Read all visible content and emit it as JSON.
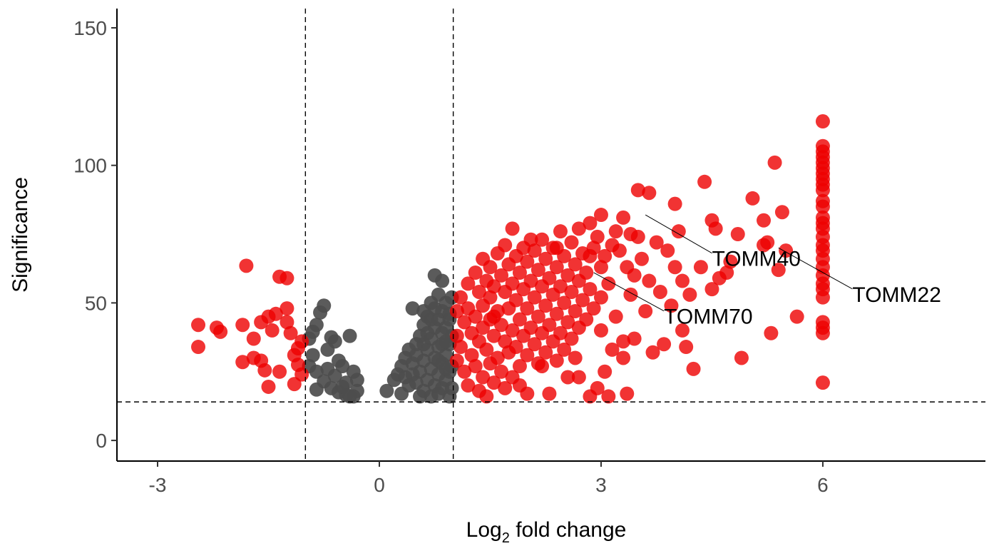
{
  "chart_data": {
    "type": "scatter",
    "title": "",
    "xlabel": "Log2 fold change",
    "xlabel_main": "Log",
    "xlabel_sub": "2",
    "xlabel_rest": " fold change",
    "ylabel": "Significance",
    "xlim": [
      -3.55,
      8.2
    ],
    "ylim": [
      -7.5,
      157
    ],
    "x_ticks": [
      -3,
      0,
      3,
      6
    ],
    "x_tick_labels": [
      "-3",
      "0",
      "3",
      "6"
    ],
    "y_ticks": [
      0,
      50,
      100,
      150
    ],
    "y_tick_labels": [
      "0",
      "50",
      "100",
      "150"
    ],
    "grid": false,
    "legend": "none",
    "thresholds": {
      "fold_change": [
        -1,
        1
      ],
      "significance": 14
    },
    "colors": {
      "significant": "#ee0000",
      "not_significant": "#4d4d4d",
      "threshold_line": "#000000"
    },
    "highlighted_genes": [
      {
        "name": "TOMM40",
        "x": 3.6,
        "y": 82,
        "label_x": 4.5,
        "label_y": 66
      },
      {
        "name": "TOMM70",
        "x": 2.9,
        "y": 61,
        "label_x": 3.85,
        "label_y": 45
      },
      {
        "name": "TOMM22",
        "x": 5.4,
        "y": 70,
        "label_x": 6.4,
        "label_y": 53
      }
    ],
    "not_significant_points": [
      [
        -0.95,
        37
      ],
      [
        -0.9,
        39.5
      ],
      [
        -0.85,
        42
      ],
      [
        -0.8,
        46.5
      ],
      [
        -0.75,
        49
      ],
      [
        -0.7,
        33
      ],
      [
        -0.65,
        37.5
      ],
      [
        -0.6,
        36
      ],
      [
        -0.55,
        29
      ],
      [
        -0.5,
        27
      ],
      [
        -0.4,
        38
      ],
      [
        -0.35,
        25
      ],
      [
        -0.3,
        22
      ],
      [
        -0.95,
        27
      ],
      [
        -0.85,
        25
      ],
      [
        -0.75,
        21.5
      ],
      [
        -0.65,
        19
      ],
      [
        -0.55,
        17.5
      ],
      [
        -0.45,
        16.5
      ],
      [
        -0.35,
        16
      ],
      [
        -0.3,
        18
      ],
      [
        -0.85,
        18.5
      ],
      [
        -0.6,
        23.5
      ],
      [
        -0.45,
        21
      ],
      [
        -0.9,
        31
      ],
      [
        -0.7,
        26
      ],
      [
        -0.5,
        19.5
      ],
      [
        -0.4,
        16
      ],
      [
        0.1,
        18
      ],
      [
        0.2,
        22
      ],
      [
        0.25,
        24
      ],
      [
        0.3,
        27
      ],
      [
        0.35,
        30
      ],
      [
        0.4,
        33
      ],
      [
        0.45,
        48
      ],
      [
        0.5,
        35
      ],
      [
        0.5,
        21
      ],
      [
        0.55,
        38
      ],
      [
        0.55,
        25
      ],
      [
        0.6,
        42
      ],
      [
        0.6,
        29
      ],
      [
        0.6,
        18
      ],
      [
        0.65,
        45
      ],
      [
        0.65,
        33
      ],
      [
        0.65,
        22
      ],
      [
        0.7,
        50
      ],
      [
        0.7,
        37
      ],
      [
        0.7,
        26
      ],
      [
        0.7,
        16
      ],
      [
        0.75,
        60
      ],
      [
        0.75,
        41
      ],
      [
        0.75,
        30
      ],
      [
        0.75,
        20
      ],
      [
        0.8,
        53
      ],
      [
        0.8,
        44
      ],
      [
        0.8,
        34
      ],
      [
        0.8,
        24
      ],
      [
        0.8,
        17
      ],
      [
        0.85,
        58
      ],
      [
        0.85,
        47
      ],
      [
        0.85,
        39
      ],
      [
        0.85,
        28
      ],
      [
        0.85,
        19
      ],
      [
        0.9,
        50
      ],
      [
        0.9,
        41
      ],
      [
        0.9,
        31
      ],
      [
        0.9,
        22
      ],
      [
        0.95,
        44
      ],
      [
        0.95,
        35
      ],
      [
        0.95,
        25
      ],
      [
        0.95,
        16
      ],
      [
        0.98,
        52
      ],
      [
        0.98,
        38
      ],
      [
        0.98,
        27
      ],
      [
        0.98,
        19
      ],
      [
        0.3,
        17
      ],
      [
        0.4,
        20
      ],
      [
        0.45,
        28
      ],
      [
        0.55,
        16
      ],
      [
        0.6,
        35
      ],
      [
        0.7,
        44
      ],
      [
        0.85,
        35
      ],
      [
        0.9,
        26
      ],
      [
        0.35,
        23
      ],
      [
        0.5,
        31
      ],
      [
        0.65,
        39
      ],
      [
        0.8,
        29
      ],
      [
        0.9,
        36
      ],
      [
        0.95,
        46
      ],
      [
        0.75,
        48
      ],
      [
        0.6,
        47
      ],
      [
        0.45,
        24
      ]
    ],
    "significant_points": [
      [
        -2.45,
        42
      ],
      [
        -2.45,
        34
      ],
      [
        -2.2,
        41
      ],
      [
        -2.15,
        39.5
      ],
      [
        -1.8,
        63.5
      ],
      [
        -1.85,
        42
      ],
      [
        -1.85,
        28.5
      ],
      [
        -1.7,
        37
      ],
      [
        -1.7,
        30
      ],
      [
        -1.6,
        43
      ],
      [
        -1.6,
        29
      ],
      [
        -1.55,
        25.5
      ],
      [
        -1.5,
        45
      ],
      [
        -1.5,
        19.5
      ],
      [
        -1.45,
        40
      ],
      [
        -1.4,
        46
      ],
      [
        -1.35,
        59.5
      ],
      [
        -1.35,
        25
      ],
      [
        -1.25,
        48
      ],
      [
        -1.25,
        43
      ],
      [
        -1.25,
        59
      ],
      [
        -1.2,
        39
      ],
      [
        -1.15,
        31
      ],
      [
        -1.15,
        20.5
      ],
      [
        -1.1,
        33.5
      ],
      [
        -1.1,
        27.5
      ],
      [
        -1.05,
        36
      ],
      [
        -1.05,
        24
      ],
      [
        1.05,
        47
      ],
      [
        1.05,
        38
      ],
      [
        1.05,
        29
      ],
      [
        1.1,
        52
      ],
      [
        1.1,
        34
      ],
      [
        1.15,
        43
      ],
      [
        1.15,
        25
      ],
      [
        1.2,
        57
      ],
      [
        1.2,
        48
      ],
      [
        1.2,
        20
      ],
      [
        1.25,
        39
      ],
      [
        1.25,
        31
      ],
      [
        1.3,
        61
      ],
      [
        1.3,
        45
      ],
      [
        1.3,
        27
      ],
      [
        1.35,
        54
      ],
      [
        1.35,
        36
      ],
      [
        1.35,
        18
      ],
      [
        1.4,
        66
      ],
      [
        1.4,
        49
      ],
      [
        1.4,
        41
      ],
      [
        1.4,
        23
      ],
      [
        1.45,
        58
      ],
      [
        1.45,
        33
      ],
      [
        1.45,
        16
      ],
      [
        1.5,
        63
      ],
      [
        1.5,
        52
      ],
      [
        1.5,
        44
      ],
      [
        1.5,
        28
      ],
      [
        1.55,
        56
      ],
      [
        1.55,
        38
      ],
      [
        1.55,
        21
      ],
      [
        1.6,
        68
      ],
      [
        1.6,
        47
      ],
      [
        1.6,
        30
      ],
      [
        1.65,
        60
      ],
      [
        1.65,
        42
      ],
      [
        1.65,
        25
      ],
      [
        1.7,
        71
      ],
      [
        1.7,
        54
      ],
      [
        1.7,
        36
      ],
      [
        1.7,
        19
      ],
      [
        1.75,
        64
      ],
      [
        1.75,
        48
      ],
      [
        1.75,
        32
      ],
      [
        1.8,
        77
      ],
      [
        1.8,
        57
      ],
      [
        1.8,
        40
      ],
      [
        1.8,
        23
      ],
      [
        1.85,
        67
      ],
      [
        1.85,
        51
      ],
      [
        1.85,
        34
      ],
      [
        1.9,
        61
      ],
      [
        1.9,
        44
      ],
      [
        1.9,
        27
      ],
      [
        1.95,
        70
      ],
      [
        1.95,
        55
      ],
      [
        1.95,
        38
      ],
      [
        2.0,
        65
      ],
      [
        2.0,
        48
      ],
      [
        2.0,
        31
      ],
      [
        2.0,
        17
      ],
      [
        2.05,
        58
      ],
      [
        2.05,
        41
      ],
      [
        2.1,
        69
      ],
      [
        2.1,
        52
      ],
      [
        2.1,
        35
      ],
      [
        2.15,
        62
      ],
      [
        2.15,
        45
      ],
      [
        2.15,
        28
      ],
      [
        2.2,
        73
      ],
      [
        2.2,
        56
      ],
      [
        2.2,
        39
      ],
      [
        2.25,
        66
      ],
      [
        2.25,
        49
      ],
      [
        2.25,
        32
      ],
      [
        2.3,
        59
      ],
      [
        2.3,
        42
      ],
      [
        2.3,
        17
      ],
      [
        2.35,
        70
      ],
      [
        2.35,
        53
      ],
      [
        2.35,
        36
      ],
      [
        2.4,
        63
      ],
      [
        2.4,
        46
      ],
      [
        2.4,
        29
      ],
      [
        2.45,
        76
      ],
      [
        2.45,
        56
      ],
      [
        2.45,
        39
      ],
      [
        2.5,
        67
      ],
      [
        2.5,
        50
      ],
      [
        2.5,
        33
      ],
      [
        2.55,
        60
      ],
      [
        2.55,
        43
      ],
      [
        2.55,
        23
      ],
      [
        2.6,
        72
      ],
      [
        2.6,
        54
      ],
      [
        2.6,
        37
      ],
      [
        2.65,
        64
      ],
      [
        2.65,
        47
      ],
      [
        2.7,
        77
      ],
      [
        2.7,
        58
      ],
      [
        2.7,
        41
      ],
      [
        2.75,
        68
      ],
      [
        2.75,
        51
      ],
      [
        2.8,
        61
      ],
      [
        2.8,
        44
      ],
      [
        2.85,
        79
      ],
      [
        2.85,
        55
      ],
      [
        2.85,
        16
      ],
      [
        2.9,
        70
      ],
      [
        2.9,
        48
      ],
      [
        2.95,
        74
      ],
      [
        2.95,
        19
      ],
      [
        3.0,
        82
      ],
      [
        3.0,
        63
      ],
      [
        3.0,
        52
      ],
      [
        3.05,
        67
      ],
      [
        3.05,
        25
      ],
      [
        3.1,
        57
      ],
      [
        3.15,
        33
      ],
      [
        3.2,
        76
      ],
      [
        3.2,
        45
      ],
      [
        3.25,
        69
      ],
      [
        3.3,
        81
      ],
      [
        3.3,
        36
      ],
      [
        3.35,
        63
      ],
      [
        3.35,
        17
      ],
      [
        3.4,
        53
      ],
      [
        3.45,
        37
      ],
      [
        3.5,
        91
      ],
      [
        3.5,
        74
      ],
      [
        3.55,
        66
      ],
      [
        3.6,
        47
      ],
      [
        3.65,
        90
      ],
      [
        3.65,
        58
      ],
      [
        3.7,
        32
      ],
      [
        3.75,
        72
      ],
      [
        3.8,
        54
      ],
      [
        3.85,
        35
      ],
      [
        3.9,
        69
      ],
      [
        3.95,
        49
      ],
      [
        4.0,
        86
      ],
      [
        4.0,
        63
      ],
      [
        4.05,
        76
      ],
      [
        4.1,
        58
      ],
      [
        4.15,
        34
      ],
      [
        4.2,
        53
      ],
      [
        4.25,
        26
      ],
      [
        4.35,
        63
      ],
      [
        4.4,
        94
      ],
      [
        4.5,
        80
      ],
      [
        4.5,
        55
      ],
      [
        4.55,
        77
      ],
      [
        4.6,
        59
      ],
      [
        4.7,
        61
      ],
      [
        4.85,
        75
      ],
      [
        4.9,
        30
      ],
      [
        5.05,
        88
      ],
      [
        5.2,
        80
      ],
      [
        5.25,
        72
      ],
      [
        5.3,
        39
      ],
      [
        5.35,
        101
      ],
      [
        5.4,
        62
      ],
      [
        5.45,
        83
      ],
      [
        5.5,
        69
      ],
      [
        5.65,
        45
      ],
      [
        5.2,
        71
      ],
      [
        3.3,
        30
      ],
      [
        3.45,
        60
      ],
      [
        4.75,
        65
      ],
      [
        1.9,
        20
      ],
      [
        2.7,
        23
      ],
      [
        2.2,
        27
      ],
      [
        3.1,
        16
      ],
      [
        4.1,
        40
      ],
      [
        3.0,
        40
      ],
      [
        2.65,
        30
      ],
      [
        1.55,
        45
      ],
      [
        2.4,
        70
      ],
      [
        2.85,
        67
      ],
      [
        3.15,
        71
      ],
      [
        3.4,
        75
      ],
      [
        2.05,
        73
      ],
      [
        6.0,
        116
      ],
      [
        6.0,
        107
      ],
      [
        6.0,
        105
      ],
      [
        6.0,
        103
      ],
      [
        6.0,
        101
      ],
      [
        6.0,
        99
      ],
      [
        6.0,
        97
      ],
      [
        6.0,
        95
      ],
      [
        6.0,
        93
      ],
      [
        6.0,
        91
      ],
      [
        6.0,
        87
      ],
      [
        6.0,
        85
      ],
      [
        6.0,
        81
      ],
      [
        6.0,
        79
      ],
      [
        6.0,
        77
      ],
      [
        6.0,
        74
      ],
      [
        6.0,
        71
      ],
      [
        6.0,
        69
      ],
      [
        6.0,
        66
      ],
      [
        6.0,
        63
      ],
      [
        6.0,
        60
      ],
      [
        6.0,
        57
      ],
      [
        6.0,
        55
      ],
      [
        6.0,
        52
      ],
      [
        6.0,
        43
      ],
      [
        6.0,
        41
      ],
      [
        6.0,
        39
      ],
      [
        6.0,
        21
      ]
    ]
  }
}
